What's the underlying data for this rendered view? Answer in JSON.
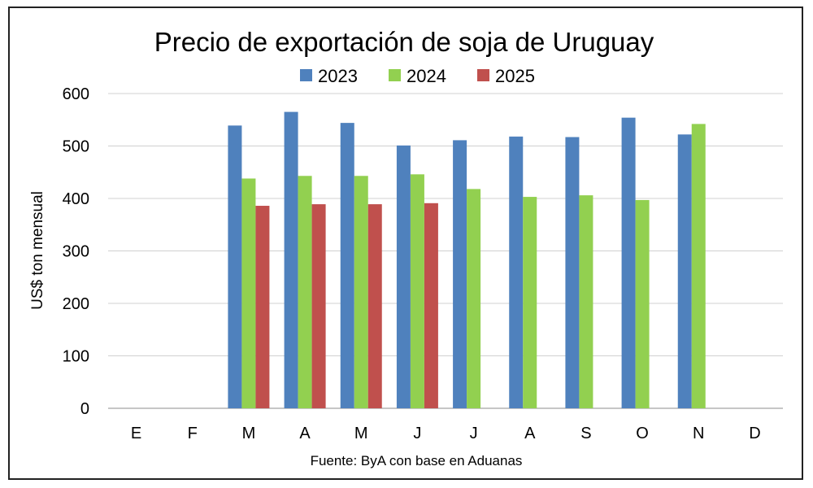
{
  "chart_data": {
    "type": "bar",
    "title": "Precio de exportación de soja de Uruguay",
    "ylabel": "US$ ton mensual",
    "xlabel": "",
    "source": "Fuente: ByA con base en Aduanas",
    "categories": [
      "E",
      "F",
      "M",
      "A",
      "M",
      "J",
      "J",
      "A",
      "S",
      "O",
      "N",
      "D"
    ],
    "ylim": [
      0,
      600
    ],
    "yticks": [
      0,
      100,
      200,
      300,
      400,
      500,
      600
    ],
    "grid": true,
    "legend_position": "top-center",
    "series": [
      {
        "name": "2023",
        "color": "#4F81BD",
        "values": [
          null,
          null,
          539,
          565,
          544,
          501,
          511,
          518,
          517,
          554,
          522,
          null
        ]
      },
      {
        "name": "2024",
        "color": "#92D050",
        "values": [
          null,
          null,
          438,
          443,
          443,
          446,
          418,
          403,
          406,
          397,
          542,
          null
        ]
      },
      {
        "name": "2025",
        "color": "#C0504D",
        "values": [
          null,
          null,
          386,
          389,
          389,
          391,
          null,
          null,
          null,
          null,
          null,
          null
        ]
      }
    ]
  }
}
